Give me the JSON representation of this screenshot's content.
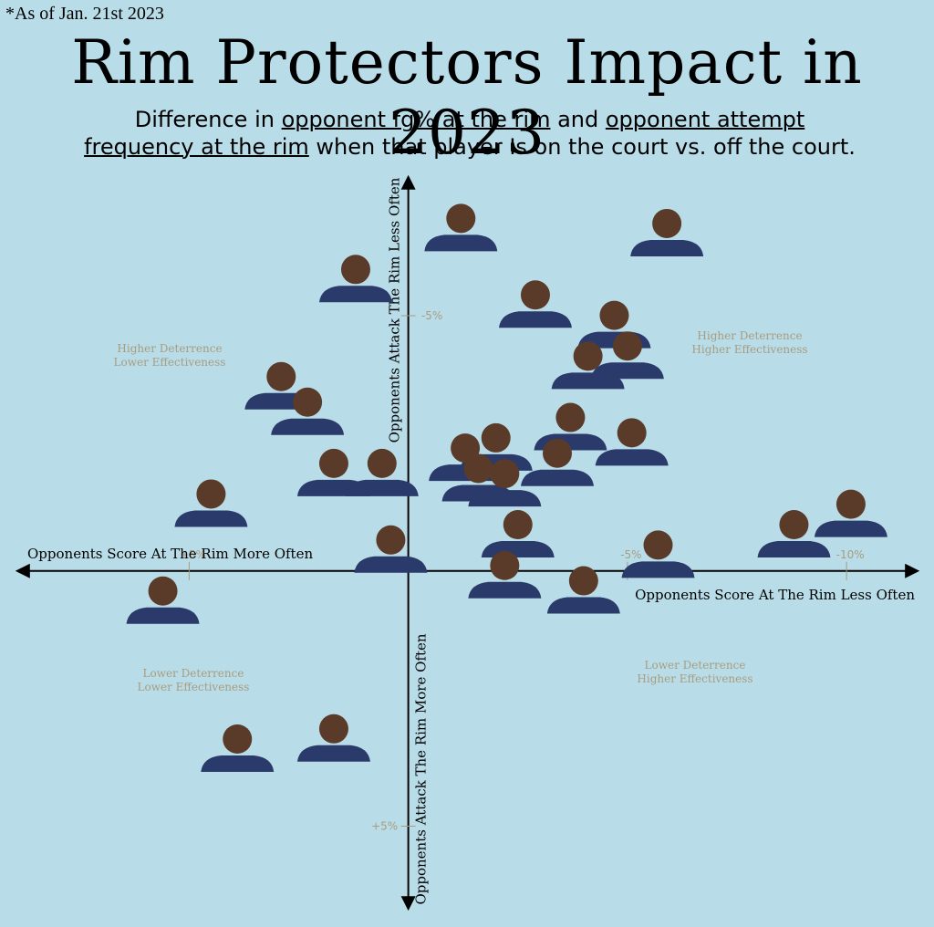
{
  "note": "*As of Jan. 21st 2023",
  "chart_data": {
    "type": "scatter",
    "title": "Rim Protectors Impact in 2023",
    "subtitle": [
      "Difference in ",
      "opponent fg% at the rim",
      " and ",
      "opponent attempt frequency at the rim",
      " when that player Is on the court vs. off the court."
    ],
    "x_label_left": "Opponents Score At The Rim More Often",
    "x_label_right": "Opponents Score At The Rim Less Often",
    "y_label_top": "Opponents Attack The Rim Less Often",
    "y_label_bottom": "Opponents Attack The Rim More Often",
    "quadrants": [
      [
        "Higher Deterrence",
        "Lower Effectiveness"
      ],
      [
        "Higher Deterrence",
        "Higher Effectiveness"
      ],
      [
        "Lower Deterrence",
        "Lower Effectiveness"
      ],
      [
        "Lower Deterrence",
        "Higher Effectiveness"
      ]
    ],
    "xlim": [
      8.9,
      -11.6
    ],
    "ylim": [
      -7.7,
      6.6
    ],
    "xticks": [
      {
        "value": 5,
        "label": "+5%"
      },
      {
        "value": -5,
        "label": "-5%"
      },
      {
        "value": -10,
        "label": "-10%"
      }
    ],
    "yticks": [
      {
        "value": -5,
        "label": "-5%"
      },
      {
        "value": 5,
        "label": "+5%"
      }
    ],
    "color": "#5a3a28",
    "x": [
      -1.2,
      -5.9,
      1.2,
      -2.9,
      -4.7,
      -5.0,
      -4.1,
      2.9,
      2.3,
      -3.7,
      -5.1,
      -2.0,
      -1.3,
      -3.4,
      1.7,
      0.6,
      -1.6,
      -2.2,
      4.5,
      -2.5,
      -8.8,
      -10.1,
      0.4,
      -2.2,
      -5.7,
      -4.0,
      5.6,
      3.9,
      1.7
    ],
    "values": [
      -6.8,
      -6.7,
      -5.8,
      -5.3,
      -4.9,
      -4.3,
      -4.1,
      -3.7,
      -3.2,
      -2.9,
      -2.6,
      -2.5,
      -2.3,
      -2.2,
      -2.0,
      -2.0,
      -1.9,
      -1.8,
      -1.4,
      -0.8,
      -0.8,
      -1.2,
      -0.5,
      0.0,
      -0.4,
      0.3,
      0.5,
      3.4,
      3.2
    ]
  }
}
